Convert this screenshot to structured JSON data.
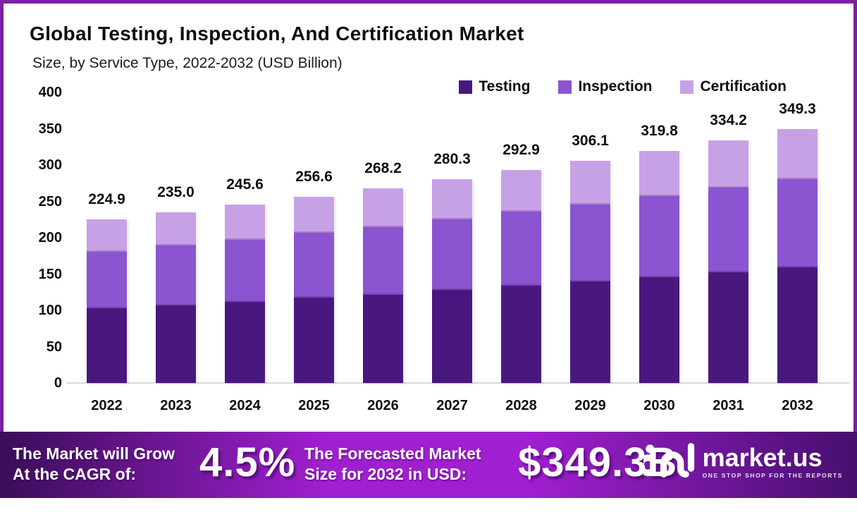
{
  "header": {
    "title": "Global Testing, Inspection, And Certification Market",
    "subtitle": "Size, by Service Type, 2022-2032 (USD Billion)"
  },
  "chart_data": {
    "type": "stacked-bar",
    "title": "Global Testing, Inspection, And Certification Market Size, by Service Type, 2022-2032 (USD Billion)",
    "categories": [
      "2022",
      "2023",
      "2024",
      "2025",
      "2026",
      "2027",
      "2028",
      "2029",
      "2030",
      "2031",
      "2032"
    ],
    "series": [
      {
        "name": "Testing",
        "color": "#49187f",
        "values": [
          103,
          107,
          111.5,
          117,
          121.5,
          128,
          133.5,
          139.5,
          146,
          152.5,
          159.5
        ]
      },
      {
        "name": "Inspection",
        "color": "#8b54d0",
        "values": [
          78,
          82,
          86,
          90,
          93.5,
          97.5,
          102,
          106.5,
          111,
          116,
          121.5
        ]
      },
      {
        "name": "Certification",
        "color": "#c7a1e6",
        "values": [
          43.9,
          46,
          48.1,
          49.6,
          53.2,
          54.8,
          57.4,
          60.1,
          62.8,
          65.7,
          68.3
        ]
      }
    ],
    "totals": [
      224.9,
      235.0,
      245.6,
      256.6,
      268.2,
      280.3,
      292.9,
      306.1,
      319.8,
      334.2,
      349.3
    ],
    "total_labels": [
      "224.9",
      "235.0",
      "245.6",
      "256.6",
      "268.2",
      "280.3",
      "292.9",
      "306.1",
      "319.8",
      "334.2",
      "349.3"
    ],
    "xlabel": "",
    "ylabel": "",
    "ylim": [
      0,
      400
    ],
    "yticks": [
      0,
      50,
      100,
      150,
      200,
      250,
      300,
      350,
      400
    ],
    "grid": false,
    "legend_position": "top-right"
  },
  "banner": {
    "cagr_label": [
      "The Market will Grow",
      "At the CAGR of:"
    ],
    "cagr_value": "4.5%",
    "forecast_label": [
      "The Forecasted Market",
      "Size for 2032 in USD:"
    ],
    "forecast_value": "$349.3B",
    "logo": {
      "brand": "market.us",
      "tagline": "ONE STOP SHOP FOR THE REPORTS"
    }
  },
  "colors": {
    "frame_border": "#7d1fa2",
    "axis_line": "#d9d9d9",
    "text": "#0d0d0d",
    "banner_gradient_left": "#3a0d58",
    "banner_gradient_mid": "#a01fd0",
    "banner_gradient_right": "#470f6e"
  }
}
